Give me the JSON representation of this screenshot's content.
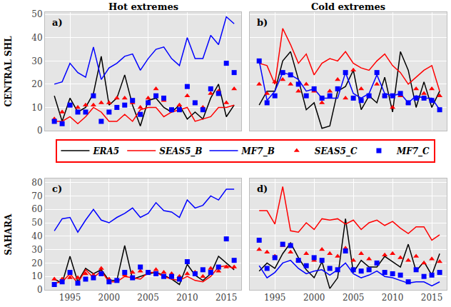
{
  "chart_data": [
    {
      "type": "line",
      "title": "Hot extremes",
      "ylabel": "CENTRAL SHL",
      "annotations": [
        "a)"
      ],
      "x": [
        1993,
        1994,
        1995,
        1996,
        1997,
        1998,
        1999,
        2000,
        2001,
        2002,
        2003,
        2004,
        2005,
        2006,
        2007,
        2008,
        2009,
        2010,
        2011,
        2012,
        2013,
        2014,
        2015,
        2016
      ],
      "xlim": [
        1991.8,
        2016.9
      ],
      "xticks": [
        1995,
        2000,
        2005,
        2010,
        2015
      ],
      "ylim": [
        0,
        51
      ],
      "yticks": [
        0,
        10,
        20,
        30,
        40,
        50
      ],
      "grid": true,
      "tick_labels": "y",
      "legend": "center",
      "series": [
        {
          "name": "ERA5",
          "color": "#000000",
          "type": "line",
          "values": [
            15,
            4,
            14,
            8,
            10,
            16,
            32,
            11,
            14,
            24,
            11,
            2,
            13,
            14,
            10,
            8,
            11,
            5,
            8,
            5,
            14,
            20,
            6,
            11
          ]
        },
        {
          "name": "SEAS5_B",
          "color": "#ff0000",
          "type": "line",
          "values": [
            4,
            4,
            6,
            3,
            6,
            10,
            8,
            4,
            4,
            7,
            4,
            9,
            10,
            10,
            6,
            8,
            9,
            10,
            4,
            5,
            6,
            10,
            10,
            11
          ]
        },
        {
          "name": "MF7_B",
          "color": "#0000ff",
          "type": "line",
          "values": [
            20,
            21,
            29,
            25,
            23,
            36,
            22,
            27,
            29,
            32,
            33,
            26,
            31,
            35,
            36,
            31,
            28,
            40,
            31,
            31,
            41,
            37,
            49,
            46
          ]
        },
        {
          "name": "SEAS5_C",
          "color": "#ff0000",
          "type": "scatter",
          "marker": "triangle",
          "values": [
            5,
            8,
            11,
            10,
            11,
            11,
            12,
            12,
            14,
            14,
            12,
            10,
            14,
            18,
            13,
            9,
            11,
            15,
            12,
            10,
            16,
            17,
            12,
            18
          ]
        },
        {
          "name": "MF7_C",
          "color": "#0000ff",
          "type": "scatter",
          "marker": "square",
          "values": [
            4,
            3,
            11,
            8,
            8,
            15,
            4,
            8,
            10,
            11,
            13,
            7,
            12,
            15,
            14,
            9,
            9,
            19,
            12,
            9,
            18,
            16,
            29,
            25
          ]
        }
      ]
    },
    {
      "type": "line",
      "title": "Cold extremes",
      "annotations": [
        "b)"
      ],
      "x": [
        1993,
        1994,
        1995,
        1996,
        1997,
        1998,
        1999,
        2000,
        2001,
        2002,
        2003,
        2004,
        2005,
        2006,
        2007,
        2008,
        2009,
        2010,
        2011,
        2012,
        2013,
        2014,
        2015,
        2016
      ],
      "xlim": [
        1991.8,
        2016.9
      ],
      "xticks": [
        1995,
        2000,
        2005,
        2010,
        2015
      ],
      "ylim": [
        0,
        51
      ],
      "yticks": [
        0,
        10,
        20,
        30,
        40,
        50
      ],
      "grid": true,
      "tick_labels": false,
      "series": [
        {
          "name": "ERA5",
          "color": "#000000",
          "type": "line",
          "values": [
            11,
            17,
            17,
            30,
            34,
            22,
            9,
            12,
            1,
            2,
            17,
            19,
            26,
            9,
            15,
            12,
            23,
            8,
            34,
            26,
            10,
            21,
            10,
            17
          ]
        },
        {
          "name": "SEAS5_B",
          "color": "#ff0000",
          "type": "line",
          "values": [
            29,
            28,
            20,
            44,
            37,
            29,
            33,
            24,
            29,
            31,
            30,
            34,
            29,
            27,
            26,
            30,
            33,
            28,
            25,
            20,
            23,
            26,
            28,
            17
          ]
        },
        {
          "name": "MF7_B",
          "color": "#0000ff",
          "type": "line",
          "values": [
            30,
            13,
            17,
            25,
            24,
            22,
            17,
            18,
            14,
            14,
            14,
            25,
            16,
            14,
            16,
            24,
            16,
            15,
            16,
            12,
            15,
            14,
            14,
            9
          ]
        },
        {
          "name": "SEAS5_C",
          "color": "#ff0000",
          "type": "scatter",
          "marker": "triangle",
          "values": [
            20,
            16,
            21,
            22,
            20,
            17,
            20,
            17,
            12,
            17,
            22,
            14,
            26,
            18,
            15,
            20,
            15,
            10,
            15,
            12,
            18,
            16,
            18,
            15
          ]
        },
        {
          "name": "MF7_C",
          "color": "#0000ff",
          "type": "scatter",
          "marker": "square",
          "values": [
            30,
            12,
            15,
            25,
            24,
            20,
            15,
            18,
            14,
            15,
            18,
            25,
            14,
            13,
            15,
            25,
            15,
            15,
            16,
            12,
            14,
            14,
            13,
            9
          ]
        }
      ]
    },
    {
      "type": "line",
      "ylabel": "SAHARA",
      "annotations": [
        "c)"
      ],
      "x": [
        1993,
        1994,
        1995,
        1996,
        1997,
        1998,
        1999,
        2000,
        2001,
        2002,
        2003,
        2004,
        2005,
        2006,
        2007,
        2008,
        2009,
        2010,
        2011,
        2012,
        2013,
        2014,
        2015,
        2016
      ],
      "xlim": [
        1991.8,
        2016.9
      ],
      "xticks": [
        1995,
        2000,
        2005,
        2010,
        2015
      ],
      "ylim": [
        0,
        83
      ],
      "yticks": [
        0,
        10,
        20,
        30,
        40,
        50,
        60,
        70,
        80
      ],
      "grid": true,
      "series": [
        {
          "name": "ERA5",
          "color": "#000000",
          "type": "line",
          "values": [
            8,
            5,
            25,
            6,
            16,
            12,
            15,
            7,
            7,
            33,
            8,
            10,
            12,
            13,
            11,
            8,
            4,
            19,
            11,
            7,
            12,
            25,
            20,
            15
          ]
        },
        {
          "name": "SEAS5_B",
          "color": "#ff0000",
          "type": "line",
          "values": [
            5,
            6,
            12,
            5,
            15,
            9,
            14,
            6,
            6,
            10,
            9,
            8,
            13,
            13,
            10,
            8,
            7,
            10,
            7,
            6,
            10,
            17,
            18,
            16
          ]
        },
        {
          "name": "MF7_B",
          "color": "#0000ff",
          "type": "line",
          "values": [
            44,
            53,
            54,
            43,
            52,
            60,
            52,
            50,
            54,
            57,
            61,
            54,
            57,
            65,
            59,
            58,
            54,
            67,
            61,
            63,
            70,
            67,
            75,
            75
          ]
        },
        {
          "name": "SEAS5_C",
          "color": "#ff0000",
          "type": "scatter",
          "marker": "triangle",
          "values": [
            8,
            8,
            9,
            9,
            12,
            11,
            16,
            8,
            7,
            11,
            13,
            14,
            13,
            15,
            13,
            12,
            10,
            12,
            13,
            10,
            16,
            14,
            17,
            17
          ]
        },
        {
          "name": "MF7_C",
          "color": "#0000ff",
          "type": "scatter",
          "marker": "square",
          "values": [
            4,
            6,
            13,
            5,
            8,
            9,
            12,
            6,
            7,
            13,
            9,
            17,
            13,
            12,
            10,
            10,
            8,
            21,
            12,
            15,
            13,
            17,
            38,
            22
          ]
        }
      ]
    },
    {
      "type": "line",
      "annotations": [
        "d)"
      ],
      "x": [
        1993,
        1994,
        1995,
        1996,
        1997,
        1998,
        1999,
        2000,
        2001,
        2002,
        2003,
        2004,
        2005,
        2006,
        2007,
        2008,
        2009,
        2010,
        2011,
        2012,
        2013,
        2014,
        2015,
        2016
      ],
      "xlim": [
        1991.8,
        2016.9
      ],
      "xticks": [
        1995,
        2000,
        2005,
        2010,
        2015
      ],
      "ylim": [
        0,
        83
      ],
      "yticks": [
        0,
        10,
        20,
        30,
        40,
        50,
        60,
        70,
        80
      ],
      "grid": true,
      "tick_labels": "x",
      "series": [
        {
          "name": "ERA5",
          "color": "#000000",
          "type": "line",
          "values": [
            14,
            20,
            16,
            27,
            35,
            24,
            15,
            9,
            21,
            1,
            9,
            53,
            13,
            22,
            17,
            17,
            25,
            21,
            17,
            34,
            14,
            21,
            11,
            27
          ]
        },
        {
          "name": "SEAS5_B",
          "color": "#ff0000",
          "type": "line",
          "values": [
            59,
            59,
            49,
            77,
            44,
            43,
            50,
            45,
            53,
            52,
            53,
            49,
            52,
            45,
            50,
            52,
            48,
            51,
            46,
            42,
            47,
            47,
            37,
            41
          ]
        },
        {
          "name": "MF7_B",
          "color": "#0000ff",
          "type": "line",
          "values": [
            18,
            9,
            13,
            20,
            22,
            16,
            12,
            14,
            15,
            11,
            15,
            20,
            12,
            9,
            11,
            14,
            10,
            9,
            7,
            5,
            6,
            6,
            3,
            6
          ]
        },
        {
          "name": "SEAS5_C",
          "color": "#ff0000",
          "type": "scatter",
          "marker": "triangle",
          "values": [
            30,
            28,
            25,
            33,
            28,
            22,
            27,
            22,
            30,
            27,
            25,
            31,
            22,
            27,
            23,
            20,
            26,
            27,
            24,
            22,
            25,
            20,
            23,
            21
          ]
        },
        {
          "name": "MF7_C",
          "color": "#0000ff",
          "type": "scatter",
          "marker": "square",
          "values": [
            37,
            16,
            24,
            34,
            33,
            22,
            18,
            24,
            22,
            16,
            15,
            29,
            15,
            14,
            15,
            20,
            13,
            12,
            11,
            6,
            15,
            10,
            11,
            13
          ]
        }
      ]
    }
  ]
}
